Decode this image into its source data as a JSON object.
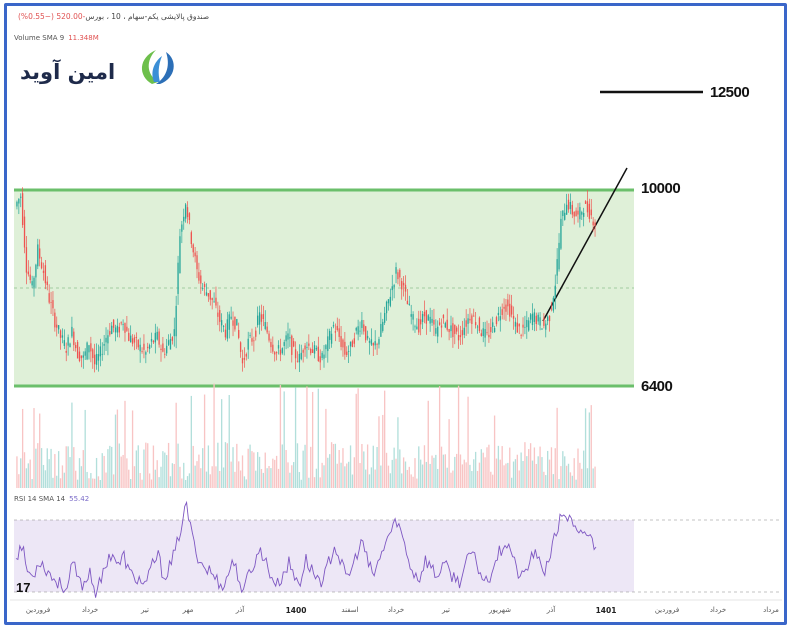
{
  "header": {
    "symbol_line": "صندوق پالایشی یکم-سهام ، 10 ، بورس",
    "change": "-520.00 (−0.55%)"
  },
  "volume": {
    "label": "Volume SMA 9",
    "value": "11.348M"
  },
  "logo": {
    "text": "امین آوید"
  },
  "rsi": {
    "label": "RSI 14 SMA 14",
    "value": "55.42",
    "upper": 70,
    "lower": 30
  },
  "tv_logo": "17",
  "levels": {
    "top": "10000",
    "bottom": "6400",
    "target": "12500"
  },
  "x_axis": {
    "ticks": [
      "فروردین",
      "خرداد",
      "تیر",
      "مهر",
      "آذر",
      "1400",
      "اسفند",
      "خرداد",
      "تیر",
      "شهریور",
      "آذر",
      "1401",
      "فروردین",
      "خرداد",
      "مرداد"
    ],
    "bold": [
      "1400",
      "1401"
    ]
  },
  "colors": {
    "channel_fill": "#dff0d8",
    "channel_line": "#6bbf6b",
    "up_candle": "#26a69a",
    "down_candle": "#ef5350",
    "rsi_line": "#7e57c2",
    "rsi_fill": "#ede7f6",
    "frame": "#3a66c9"
  },
  "chart_data": {
    "type": "candlestick",
    "channel": {
      "upper": 10000,
      "lower": 6400
    },
    "target_level": 12500,
    "price_path": [
      9700,
      9900,
      8600,
      8200,
      8900,
      8500,
      8000,
      7600,
      7300,
      7100,
      7400,
      7000,
      6900,
      7200,
      6800,
      7000,
      7300,
      7500,
      7400,
      7600,
      7300,
      7200,
      7100,
      7000,
      7200,
      7300,
      7000,
      7200,
      7400,
      9200,
      9800,
      9100,
      8500,
      8200,
      8100,
      7900,
      7600,
      7400,
      7700,
      7500,
      6800,
      7200,
      7300,
      7700,
      7500,
      7200,
      7000,
      7100,
      7300,
      7000,
      6900,
      7200,
      7100,
      7000,
      6900,
      7200,
      7500,
      7300,
      7000,
      7100,
      7400,
      7600,
      7200,
      7100,
      7300,
      7700,
      8100,
      8500,
      8300,
      7900,
      7600,
      7500,
      7700,
      7600,
      7400,
      7600,
      7500,
      7400,
      7300,
      7500,
      7700,
      7600,
      7400,
      7300,
      7500,
      7700,
      7900,
      7800,
      7500,
      7400,
      7500,
      7700,
      7600,
      7500,
      7700,
      8300,
      9400,
      9800,
      9600,
      9500,
      9700,
      9600,
      9400
    ],
    "rsi_path": [
      50,
      56,
      42,
      38,
      48,
      44,
      40,
      36,
      34,
      32,
      46,
      36,
      34,
      42,
      30,
      36,
      48,
      52,
      44,
      50,
      40,
      38,
      36,
      34,
      46,
      50,
      38,
      44,
      52,
      66,
      78,
      60,
      50,
      44,
      42,
      38,
      34,
      36,
      48,
      40,
      28,
      42,
      46,
      54,
      46,
      38,
      34,
      40,
      46,
      38,
      36,
      48,
      42,
      38,
      36,
      46,
      56,
      48,
      38,
      42,
      52,
      58,
      44,
      40,
      48,
      58,
      64,
      70,
      60,
      48,
      40,
      38,
      48,
      44,
      38,
      46,
      42,
      38,
      36,
      44,
      52,
      46,
      38,
      36,
      46,
      52,
      58,
      54,
      42,
      38,
      44,
      52,
      46,
      42,
      52,
      62,
      74,
      72,
      66,
      60,
      64,
      60,
      55
    ]
  }
}
